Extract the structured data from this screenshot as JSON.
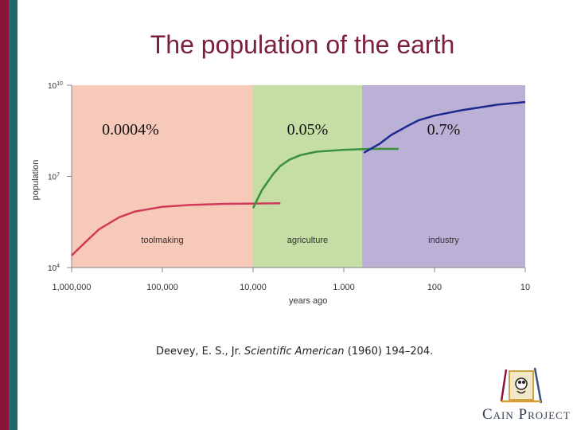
{
  "slide": {
    "title": "The population of the earth",
    "citation": {
      "authors": "Deevey, E. S., Jr.",
      "journal": "Scientific American",
      "details": "(1960) 194–204."
    },
    "logo": {
      "text": "Cain Project",
      "icon": "tripod-figure-icon"
    },
    "colors": {
      "stripe_red": "#8b1538",
      "stripe_teal": "#1f6b6b",
      "title": "#7a1f3d"
    }
  },
  "chart_data": {
    "type": "line",
    "title": "",
    "xlabel": "years ago",
    "ylabel": "population",
    "x_scale": "log-reversed",
    "y_scale": "log",
    "xlim": [
      1000000,
      10
    ],
    "ylim": [
      10000,
      10000000000
    ],
    "x_ticks": [
      {
        "value": 1000000,
        "label": "1,000,000"
      },
      {
        "value": 100000,
        "label": "100,000"
      },
      {
        "value": 10000,
        "label": "10,000"
      },
      {
        "value": 1000,
        "label": "1.000"
      },
      {
        "value": 100,
        "label": "100"
      },
      {
        "value": 10,
        "label": "10"
      }
    ],
    "y_ticks": [
      {
        "value": 10000,
        "base": "10",
        "exp": "4"
      },
      {
        "value": 10000000,
        "base": "10",
        "exp": "7"
      },
      {
        "value": 10000000000,
        "base": "10",
        "exp": "10"
      }
    ],
    "grid": false,
    "regions": [
      {
        "label": "toolmaking",
        "growth": "0.0004%",
        "x_from": 1000000,
        "x_to": 10000,
        "color": "#f6c9b9"
      },
      {
        "label": "agriculture",
        "growth": "0.05%",
        "x_from": 10000,
        "x_to": 630,
        "color": "#c4dea5"
      },
      {
        "label": "industry",
        "growth": "0.7%",
        "x_from": 630,
        "x_to": 10,
        "color": "#bbb0d6"
      }
    ],
    "series": [
      {
        "color": "#d13a5a",
        "points": [
          [
            1000000,
            25000
          ],
          [
            700000,
            70000
          ],
          [
            500000,
            180000
          ],
          [
            300000,
            450000
          ],
          [
            200000,
            700000
          ],
          [
            100000,
            1000000
          ],
          [
            50000,
            1150000
          ],
          [
            20000,
            1250000
          ],
          [
            10000,
            1280000
          ],
          [
            5000,
            1300000
          ]
        ]
      },
      {
        "color": "#3c8f3c",
        "points": [
          [
            10000,
            900000
          ],
          [
            8000,
            3500000
          ],
          [
            6000,
            12000000
          ],
          [
            5000,
            22000000
          ],
          [
            4000,
            35000000
          ],
          [
            3000,
            50000000
          ],
          [
            2000,
            65000000
          ],
          [
            1000,
            75000000
          ],
          [
            500,
            80000000
          ],
          [
            250,
            80000000
          ]
        ]
      },
      {
        "color": "#1f2a8f",
        "points": [
          [
            600,
            60000000
          ],
          [
            400,
            120000000
          ],
          [
            300,
            230000000
          ],
          [
            200,
            450000000
          ],
          [
            150,
            700000000
          ],
          [
            100,
            1000000000
          ],
          [
            50,
            1500000000
          ],
          [
            20,
            2300000000
          ],
          [
            10,
            2800000000
          ]
        ]
      }
    ]
  }
}
